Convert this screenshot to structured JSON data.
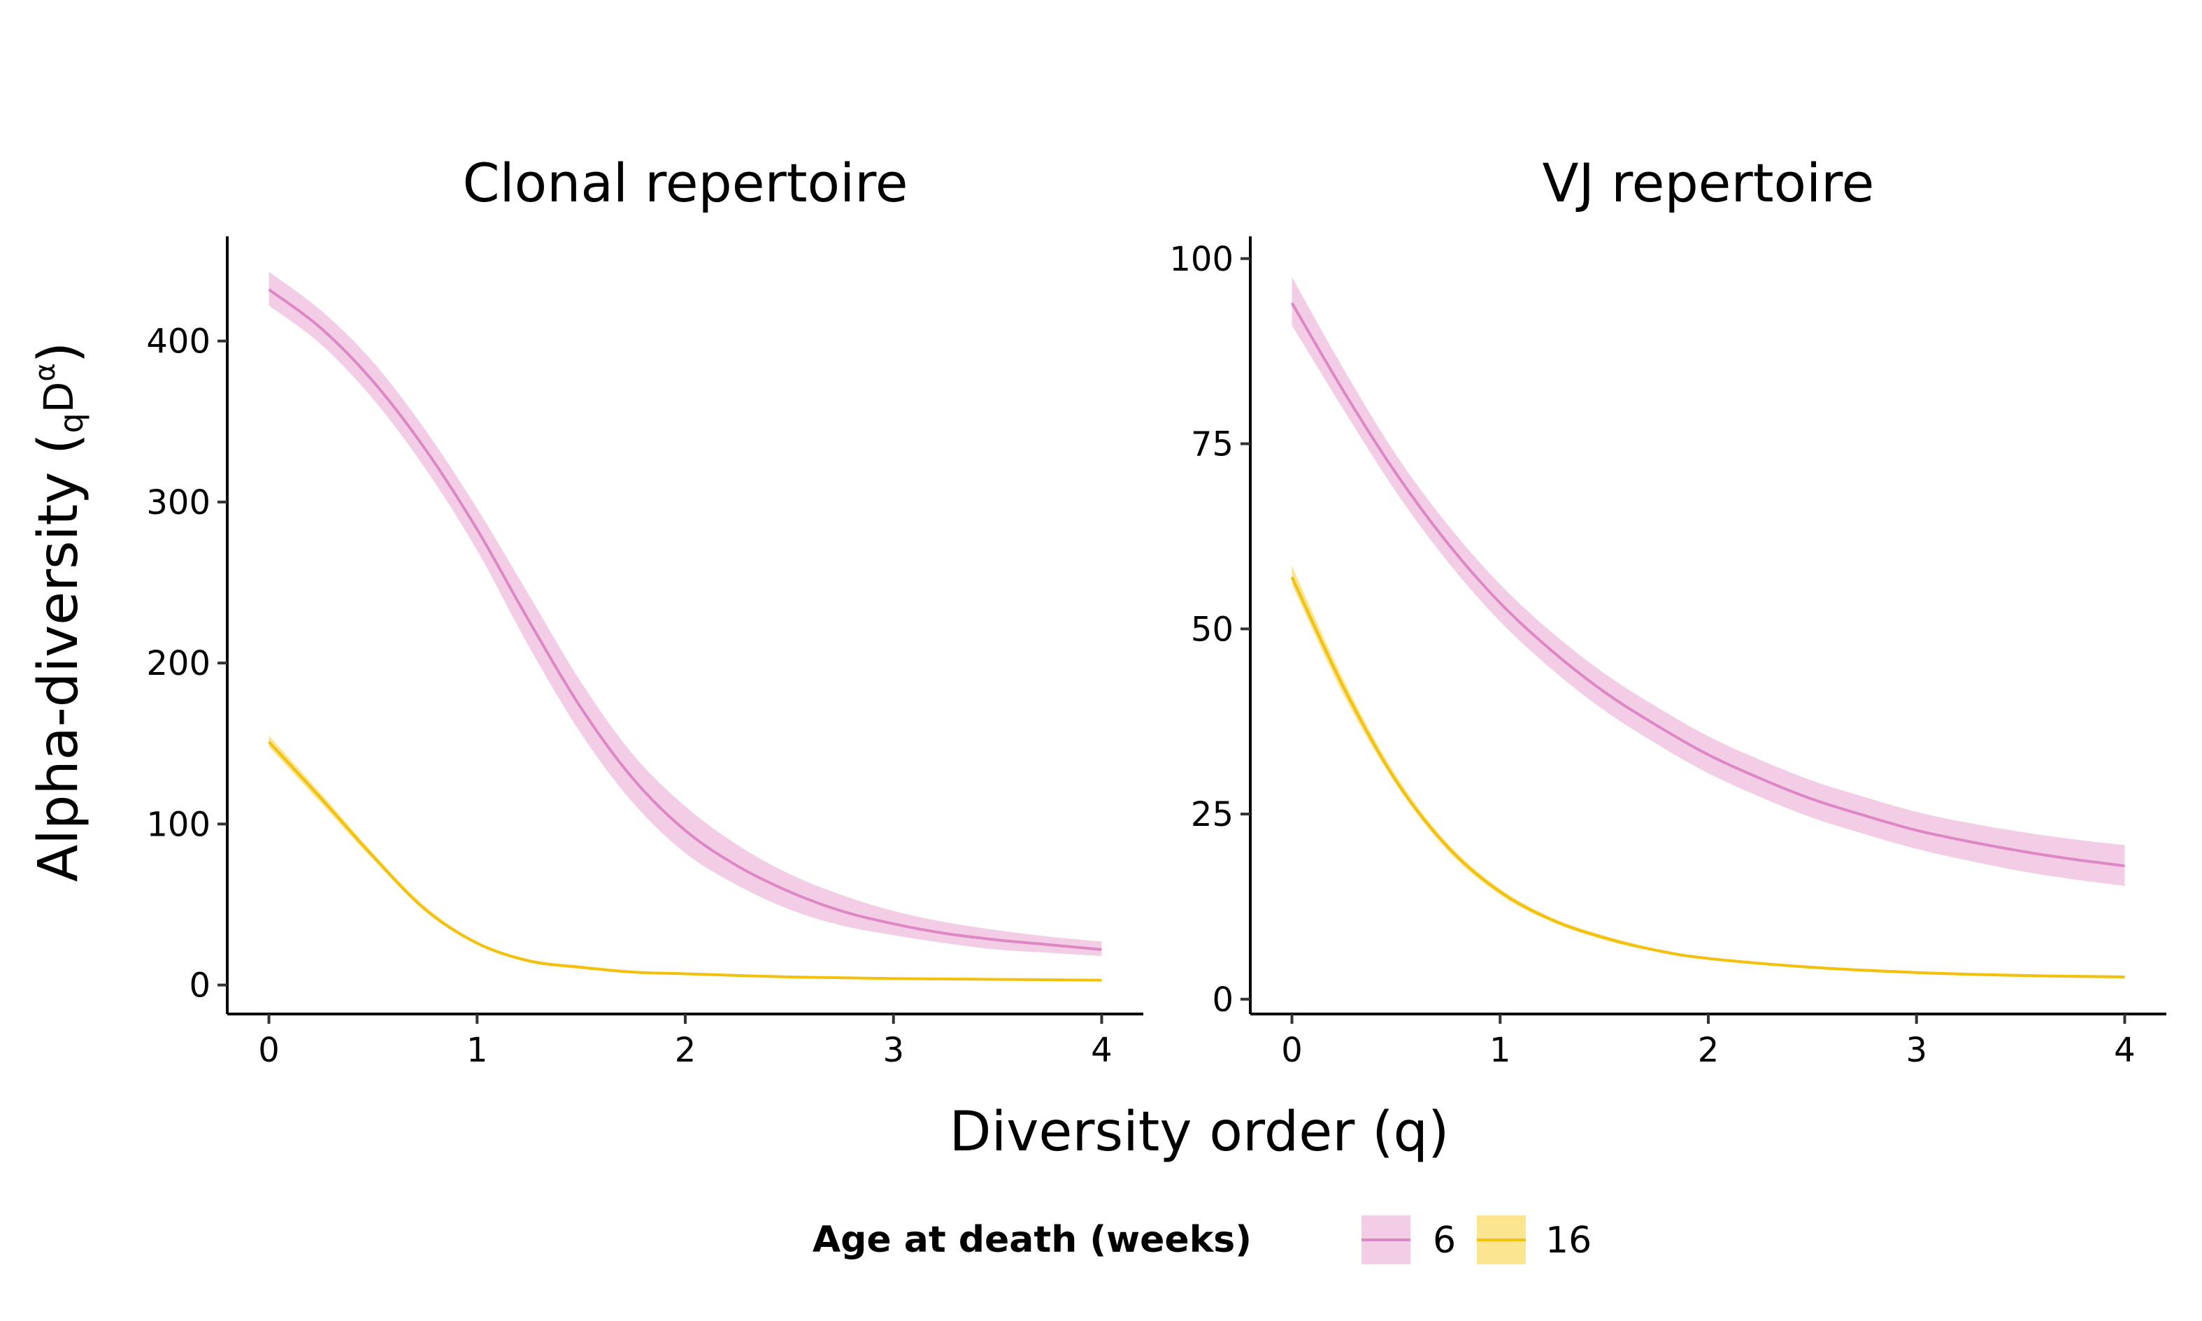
{
  "figure": {
    "xlabel": "Diversity order (q)",
    "ylabel": "Alpha-diversity (",
    "ylabel_sub": "q",
    "ylabel_main": "D",
    "ylabel_sup": "α",
    "ylabel_close": ")"
  },
  "legend": {
    "title": "Age at death (weeks)",
    "items": [
      {
        "label": "6",
        "color": "#DD88C4",
        "fill": "#F3CDE6"
      },
      {
        "label": "16",
        "color": "#F2C10E",
        "fill": "#FBE591"
      }
    ]
  },
  "chart_data": [
    {
      "type": "line",
      "title": "Clonal repertoire",
      "xlim": [
        -0.2,
        4.2
      ],
      "ylim": [
        -18,
        465
      ],
      "x_ticks": [
        0,
        1,
        2,
        3,
        4
      ],
      "y_ticks": [
        0,
        100,
        200,
        300,
        400
      ],
      "grid": false,
      "series": [
        {
          "name": "6",
          "color": "#DD88C4",
          "band_color": "#F3CDE6",
          "x": [
            0,
            0.25,
            0.5,
            0.75,
            1,
            1.25,
            1.5,
            1.75,
            2,
            2.25,
            2.5,
            2.75,
            3,
            3.25,
            3.5,
            3.75,
            4
          ],
          "y": [
            432,
            408,
            375,
            333,
            283,
            226,
            172,
            128,
            96,
            74,
            58,
            46,
            38,
            32,
            28,
            25,
            22
          ],
          "lower": [
            422,
            398,
            364,
            321,
            270,
            210,
            156,
            113,
            82,
            62,
            47,
            37,
            31,
            26,
            22,
            20,
            18
          ],
          "upper": [
            443,
            419,
            387,
            345,
            296,
            242,
            188,
            143,
            111,
            87,
            69,
            56,
            46,
            39,
            34,
            30,
            27
          ]
        },
        {
          "name": "16",
          "color": "#F2C10E",
          "band_color": "#FBE591",
          "x": [
            0,
            0.25,
            0.5,
            0.75,
            1,
            1.25,
            1.5,
            1.75,
            2,
            2.5,
            3,
            3.5,
            4
          ],
          "y": [
            151,
            116,
            80,
            47,
            26,
            15,
            11,
            8,
            7,
            5,
            4,
            3.5,
            3
          ],
          "lower": [
            148,
            113,
            78,
            46,
            25,
            14,
            10,
            7.5,
            6.5,
            4.5,
            3.5,
            3,
            2.5
          ],
          "upper": [
            155,
            119,
            82,
            49,
            27,
            16,
            12,
            9,
            7.5,
            5.5,
            4.5,
            4,
            3.5
          ]
        }
      ]
    },
    {
      "type": "line",
      "title": "VJ repertoire",
      "xlim": [
        -0.2,
        4.2
      ],
      "ylim": [
        -2,
        103
      ],
      "x_ticks": [
        0,
        1,
        2,
        3,
        4
      ],
      "y_ticks": [
        0,
        25,
        50,
        75,
        100
      ],
      "grid": false,
      "series": [
        {
          "name": "6",
          "color": "#DD88C4",
          "band_color": "#F3CDE6",
          "x": [
            0,
            0.25,
            0.5,
            0.75,
            1,
            1.25,
            1.5,
            1.75,
            2,
            2.25,
            2.5,
            2.75,
            3,
            3.25,
            3.5,
            3.75,
            4
          ],
          "y": [
            94,
            82,
            71,
            61.5,
            53.5,
            47,
            41.5,
            37,
            33,
            29.8,
            27,
            24.8,
            22.8,
            21.3,
            20,
            18.9,
            18
          ],
          "lower": [
            91,
            79.5,
            68.5,
            59,
            51,
            44.5,
            39,
            34.5,
            30.5,
            27.3,
            24.5,
            22.3,
            20.3,
            18.7,
            17.3,
            16.2,
            15.3
          ],
          "upper": [
            97.5,
            85,
            73.5,
            64,
            56,
            49.5,
            44,
            39.5,
            35.5,
            32.3,
            29.5,
            27.3,
            25.3,
            23.8,
            22.6,
            21.6,
            20.8
          ]
        },
        {
          "name": "16",
          "color": "#F2C10E",
          "band_color": "#FBE591",
          "x": [
            0,
            0.25,
            0.5,
            0.75,
            1,
            1.25,
            1.5,
            1.75,
            2,
            2.5,
            3,
            3.5,
            4
          ],
          "y": [
            57,
            42,
            29.5,
            20.5,
            14.5,
            10.7,
            8.3,
            6.6,
            5.5,
            4.3,
            3.6,
            3.2,
            3
          ],
          "lower": [
            56,
            41,
            29,
            20,
            14.1,
            10.4,
            8,
            6.4,
            5.3,
            4.1,
            3.4,
            3,
            2.8
          ],
          "upper": [
            58.5,
            43,
            30.2,
            21,
            14.9,
            11,
            8.6,
            6.8,
            5.7,
            4.5,
            3.8,
            3.4,
            3.2
          ]
        }
      ]
    }
  ]
}
